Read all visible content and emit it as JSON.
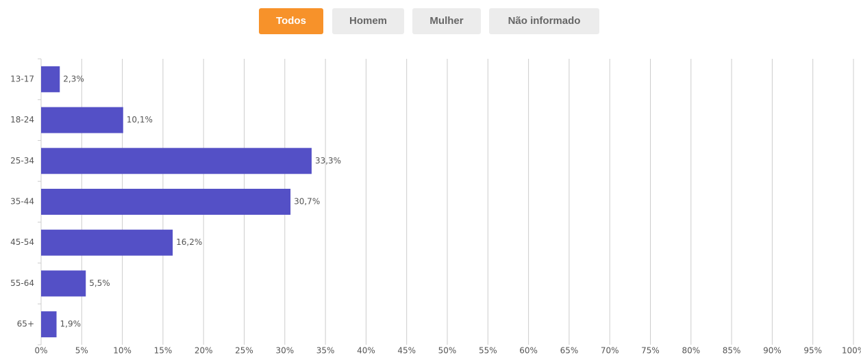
{
  "buttons": [
    "Todos",
    "Homem",
    "Mulher",
    "Não informado"
  ],
  "chart_data": {
    "type": "bar",
    "orientation": "horizontal",
    "categories": [
      "13-17",
      "18-24",
      "25-34",
      "35-44",
      "45-54",
      "55-64",
      "65+"
    ],
    "values": [
      2.3,
      10.1,
      33.3,
      30.7,
      16.2,
      5.5,
      1.9
    ],
    "value_labels": [
      "2,3%",
      "10,1%",
      "33,3%",
      "30,7%",
      "16,2%",
      "5,5%",
      "1,9%"
    ],
    "color": "#5450c6",
    "xlim": [
      0,
      100
    ],
    "xticks": [
      {
        "value": 0,
        "label": "0%"
      },
      {
        "value": 5,
        "label": "5%"
      },
      {
        "value": 10,
        "label": "10%"
      },
      {
        "value": 15,
        "label": "15%"
      },
      {
        "value": 20,
        "label": "20%"
      },
      {
        "value": 25,
        "label": "25%"
      },
      {
        "value": 30,
        "label": "30%"
      },
      {
        "value": 35,
        "label": "35%"
      },
      {
        "value": 40,
        "label": "40%"
      },
      {
        "value": 45,
        "label": "45%"
      },
      {
        "value": 50,
        "label": "50%"
      },
      {
        "value": 55,
        "label": "55%"
      },
      {
        "value": 60,
        "label": "60%"
      },
      {
        "value": 65,
        "label": "65%"
      },
      {
        "value": 70,
        "label": "70%"
      },
      {
        "value": 75,
        "label": "75%"
      },
      {
        "value": 80,
        "label": "80%"
      },
      {
        "value": 85,
        "label": "85%"
      },
      {
        "value": 90,
        "label": "90%"
      },
      {
        "value": 95,
        "label": "95%"
      },
      {
        "value": 100,
        "label": "100%"
      }
    ],
    "grid": true
  }
}
